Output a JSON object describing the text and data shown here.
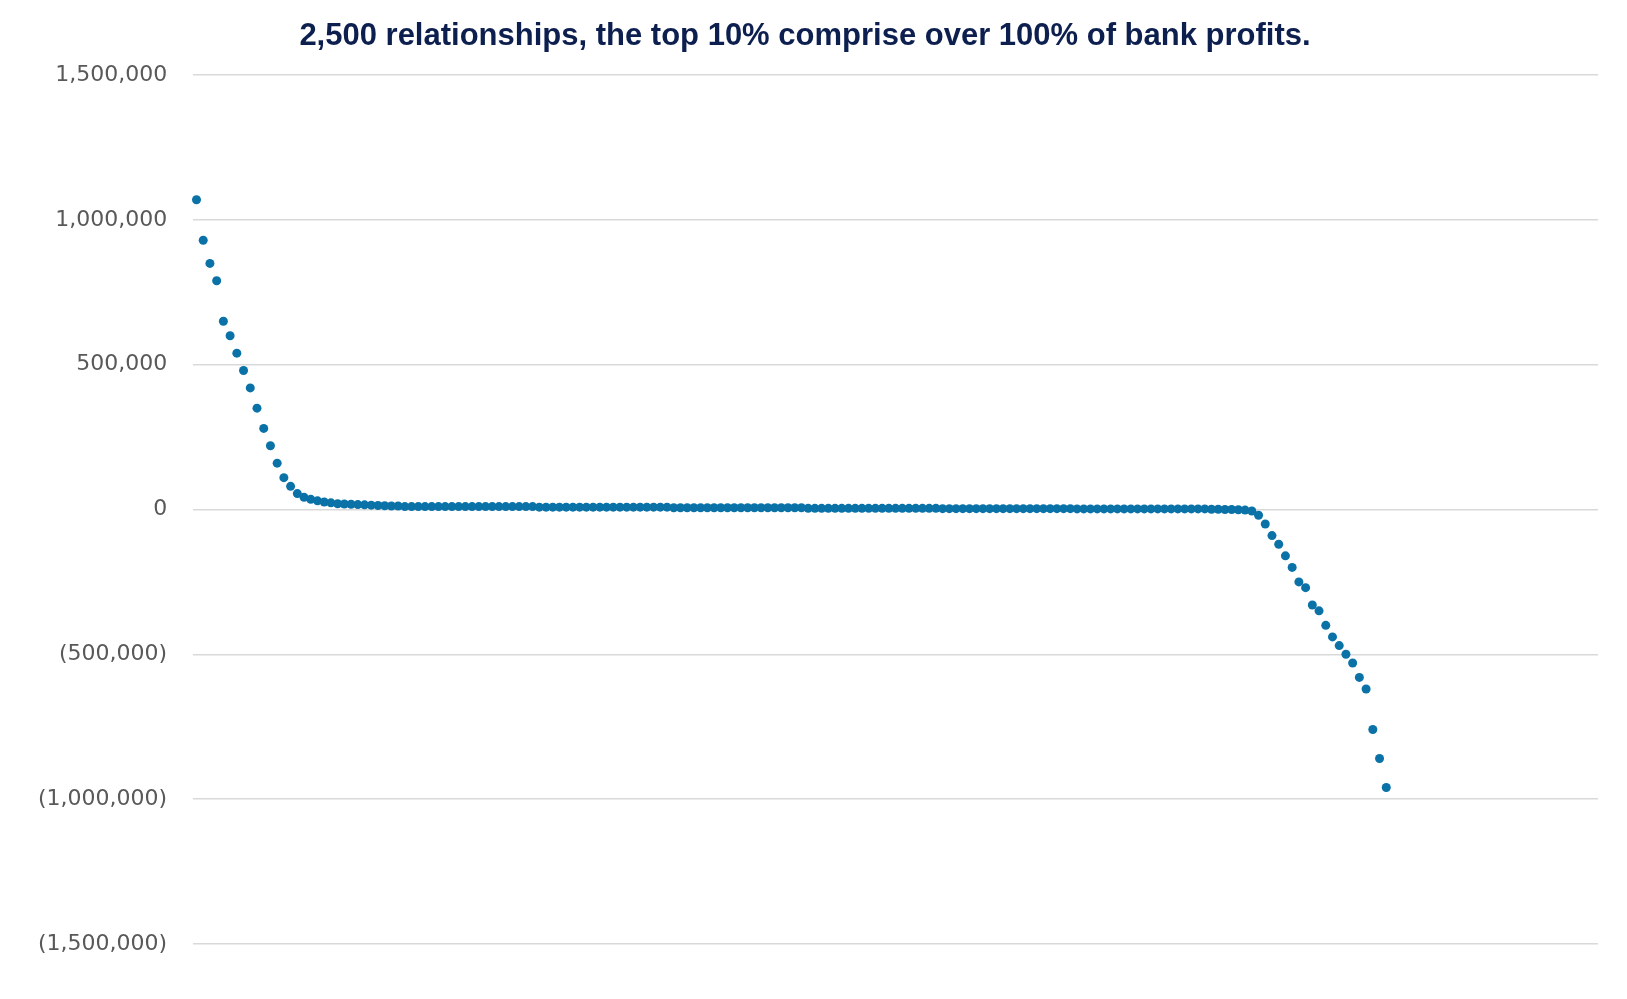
{
  "chart_data": {
    "type": "scatter",
    "title": "2,500 relationships, the top 10% comprise over 100% of bank profits.",
    "categories": [
      null,
      null,
      null,
      null,
      null,
      null,
      null,
      null,
      null,
      null,
      null,
      null,
      null,
      null,
      null,
      null,
      null,
      null,
      null,
      null,
      null,
      null,
      null,
      null,
      null,
      null,
      null,
      null,
      null,
      null,
      null,
      null,
      null,
      null,
      null,
      null,
      null,
      null,
      null,
      null,
      null,
      null,
      null,
      null,
      null,
      null,
      null,
      null,
      null,
      null,
      null,
      null,
      null,
      null,
      null,
      null,
      null,
      null,
      null,
      null,
      null,
      null,
      null,
      null,
      null,
      null,
      null,
      null,
      null,
      null,
      null,
      null,
      null,
      null,
      null,
      null,
      null,
      null,
      null,
      null,
      null,
      null,
      null,
      null,
      null,
      null,
      null,
      null,
      null,
      null,
      null,
      null,
      null,
      null,
      null,
      null,
      null,
      null,
      null,
      null,
      null,
      null,
      null,
      null,
      null,
      null,
      null,
      null,
      null,
      null,
      null,
      null,
      null,
      null,
      null,
      null,
      null,
      null,
      null,
      null,
      null,
      null,
      null,
      null,
      null,
      null,
      null,
      null,
      null,
      null,
      null,
      null,
      null,
      null,
      null,
      null,
      null,
      null,
      null,
      null,
      null,
      null,
      null,
      null,
      null,
      null,
      null,
      null,
      null,
      null,
      null,
      null,
      null,
      null,
      null,
      null,
      null,
      null,
      null,
      null,
      null,
      null,
      null,
      null,
      null,
      null,
      null,
      null,
      null,
      null,
      null,
      null,
      null,
      null,
      null,
      null,
      null,
      null,
      null,
      null,
      null,
      null,
      null,
      null,
      null,
      null,
      null,
      null,
      null,
      null,
      null,
      null,
      null,
      null,
      null,
      null,
      null,
      null,
      null,
      null,
      null,
      null,
      null,
      null,
      null,
      null,
      null,
      null,
      null
    ],
    "series": [
      {
        "color": "#0b72a8",
        "values": [
          1070000,
          930000,
          850000,
          790000,
          650000,
          600000,
          540000,
          480000,
          420000,
          350000,
          280000,
          220000,
          160000,
          110000,
          80000,
          55000,
          42000,
          35000,
          30000,
          26000,
          23000,
          20000,
          19000,
          18000,
          17000,
          16000,
          15000,
          14000,
          13000,
          12000,
          12000,
          10000,
          10000,
          10000,
          10000,
          10000,
          10000,
          10000,
          10000,
          10000,
          10000,
          10000,
          10000,
          10000,
          10000,
          10000,
          10000,
          10000,
          10000,
          10000,
          10000,
          8000,
          8000,
          8000,
          8000,
          8000,
          8000,
          8000,
          8000,
          8000,
          8000,
          8000,
          8000,
          8000,
          8000,
          8000,
          8000,
          8000,
          8000,
          8000,
          8000,
          6000,
          6000,
          6000,
          6000,
          6000,
          6000,
          6000,
          6000,
          6000,
          6000,
          6000,
          6000,
          6000,
          6000,
          6000,
          6000,
          6000,
          6000,
          6000,
          6000,
          4000,
          4000,
          4000,
          4000,
          4000,
          4000,
          4000,
          4000,
          4000,
          4000,
          4000,
          4000,
          4000,
          4000,
          4000,
          4000,
          4000,
          4000,
          4000,
          4000,
          3000,
          3000,
          3000,
          3000,
          3000,
          3000,
          3000,
          3000,
          3000,
          3000,
          3000,
          3000,
          3000,
          3000,
          3000,
          3000,
          3000,
          3000,
          3000,
          3000,
          2000,
          2000,
          2000,
          2000,
          2000,
          2000,
          2000,
          2000,
          2000,
          2000,
          2000,
          2000,
          2000,
          2000,
          2000,
          2000,
          2000,
          2000,
          2000,
          2000,
          1000,
          1000,
          0,
          0,
          -1000,
          -2000,
          -5000,
          -20000,
          -50000,
          -90000,
          -120000,
          -160000,
          -200000,
          -250000,
          -270000,
          -330000,
          -350000,
          -400000,
          -440000,
          -470000,
          -500000,
          -530000,
          -580000,
          -620000,
          -760000,
          -860000,
          -960000,
          null,
          null,
          null,
          null,
          null,
          null,
          null,
          null,
          null,
          null,
          null,
          null,
          null,
          null,
          null,
          null,
          null,
          null,
          null,
          null,
          null,
          null,
          null,
          null,
          null,
          null,
          null,
          null,
          null,
          null,
          null
        ]
      }
    ],
    "ylim": [
      -1500000,
      1500000
    ],
    "yticks": [
      {
        "value": -1500000,
        "label": "(1,500,000)"
      },
      {
        "value": -1000000,
        "label": "(1,000,000)"
      },
      {
        "value": -500000,
        "label": "(500,000)"
      },
      {
        "value": 0,
        "label": "0"
      },
      {
        "value": 500000,
        "label": "500,000"
      },
      {
        "value": 1000000,
        "label": "1,000,000"
      },
      {
        "value": 1500000,
        "label": "1,500,000"
      }
    ],
    "grid": "y",
    "tick_labels": "y",
    "marker": "circle",
    "legend": false
  }
}
